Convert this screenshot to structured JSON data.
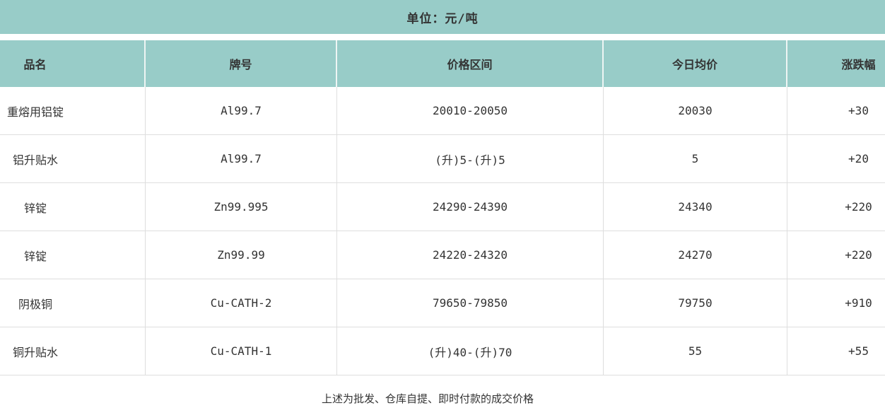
{
  "title_bar": {
    "unit_label": "单位：元/吨"
  },
  "table": {
    "headers": {
      "name": "品名",
      "brand": "牌号",
      "range": "价格区间",
      "avg": "今日均价",
      "change": "涨跌幅"
    },
    "rows": [
      {
        "name": "重熔用铝锭",
        "brand": "Al99.7",
        "range": "20010-20050",
        "avg": "20030",
        "change": "+30"
      },
      {
        "name": "铝升贴水",
        "brand": "Al99.7",
        "range": "(升)5-(升)5",
        "avg": "5",
        "change": "+20"
      },
      {
        "name": "锌锭",
        "brand": "Zn99.995",
        "range": "24290-24390",
        "avg": "24340",
        "change": "+220"
      },
      {
        "name": "锌锭",
        "brand": "Zn99.99",
        "range": "24220-24320",
        "avg": "24270",
        "change": "+220"
      },
      {
        "name": "阴极铜",
        "brand": "Cu-CATH-2",
        "range": "79650-79850",
        "avg": "79750",
        "change": "+910"
      },
      {
        "name": "铜升贴水",
        "brand": "Cu-CATH-1",
        "range": "(升)40-(升)70",
        "avg": "55",
        "change": "+55"
      }
    ]
  },
  "footer": {
    "note": "上述为批发、仓库自提、即时付款的成交价格"
  },
  "colors": {
    "header_bg": "#98ccc8",
    "row_border": "#dedede",
    "header_divider": "#eef5f4",
    "text": "#333333",
    "background": "#ffffff"
  },
  "chart_data": {
    "type": "table",
    "title": "单位：元/吨",
    "columns": [
      "品名",
      "牌号",
      "价格区间",
      "今日均价",
      "涨跌幅"
    ],
    "rows": [
      [
        "重熔用铝锭",
        "Al99.7",
        "20010-20050",
        "20030",
        "+30"
      ],
      [
        "铝升贴水",
        "Al99.7",
        "(升)5-(升)5",
        "5",
        "+20"
      ],
      [
        "锌锭",
        "Zn99.995",
        "24290-24390",
        "24340",
        "+220"
      ],
      [
        "锌锭",
        "Zn99.99",
        "24220-24320",
        "24270",
        "+220"
      ],
      [
        "阴极铜",
        "Cu-CATH-2",
        "79650-79850",
        "79750",
        "+910"
      ],
      [
        "铜升贴水",
        "Cu-CATH-1",
        "(升)40-(升)70",
        "55",
        "+55"
      ]
    ],
    "footnote": "上述为批发、仓库自提、即时付款的成交价格",
    "layout_hints": {
      "grid": true,
      "header_background": "#98ccc8",
      "body_background": "#ffffff"
    }
  }
}
